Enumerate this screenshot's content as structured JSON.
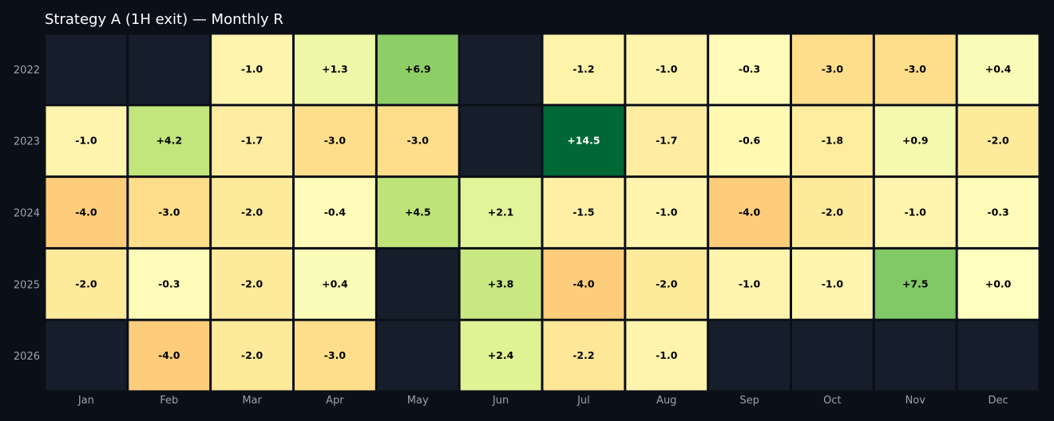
{
  "chart_data": {
    "type": "heatmap",
    "title": "Strategy A (1H exit) — Monthly R",
    "x_categories": [
      "Jan",
      "Feb",
      "Mar",
      "Apr",
      "May",
      "Jun",
      "Jul",
      "Aug",
      "Sep",
      "Oct",
      "Nov",
      "Dec"
    ],
    "y_categories": [
      "2022",
      "2023",
      "2024",
      "2025",
      "2026"
    ],
    "values": [
      [
        null,
        null,
        -1.0,
        1.3,
        6.9,
        null,
        -1.2,
        -1.0,
        -0.3,
        -3.0,
        -3.0,
        0.4
      ],
      [
        -1.0,
        4.2,
        -1.7,
        -3.0,
        -3.0,
        null,
        14.5,
        -1.7,
        -0.6,
        -1.8,
        0.9,
        -2.0
      ],
      [
        -4.0,
        -3.0,
        -2.0,
        -0.4,
        4.5,
        2.1,
        -1.5,
        -1.0,
        -4.0,
        -2.0,
        -1.0,
        -0.3
      ],
      [
        -2.0,
        -0.3,
        -2.0,
        0.4,
        null,
        3.8,
        -4.0,
        -2.0,
        -1.0,
        -1.0,
        7.5,
        0.0
      ],
      [
        null,
        -4.0,
        -2.0,
        -3.0,
        null,
        2.4,
        -2.2,
        -1.0,
        null,
        null,
        null,
        null
      ]
    ],
    "value_labels": [
      [
        "",
        "",
        "-1.0",
        "+1.3",
        "+6.9",
        "",
        "-1.2",
        "-1.0",
        "-0.3",
        "-3.0",
        "-3.0",
        "+0.4"
      ],
      [
        "-1.0",
        "+4.2",
        "-1.7",
        "-3.0",
        "-3.0",
        "",
        "+14.5",
        "-1.7",
        "-0.6",
        "-1.8",
        "+0.9",
        "-2.0"
      ],
      [
        "-4.0",
        "-3.0",
        "-2.0",
        "-0.4",
        "+4.5",
        "+2.1",
        "-1.5",
        "-1.0",
        "-4.0",
        "-2.0",
        "-1.0",
        "-0.3"
      ],
      [
        "-2.0",
        "-0.3",
        "-2.0",
        "+0.4",
        "",
        "+3.8",
        "-4.0",
        "-2.0",
        "-1.0",
        "-1.0",
        "+7.5",
        "+0.0"
      ],
      [
        "",
        "-4.0",
        "-2.0",
        "-3.0",
        "",
        "+2.4",
        "-2.2",
        "-1.0",
        "",
        "",
        "",
        ""
      ]
    ],
    "colormap": "RdYlGn",
    "empty_cell_color": "#161e2c",
    "background_color": "#0b0f17",
    "legend": "none",
    "grid": false
  }
}
